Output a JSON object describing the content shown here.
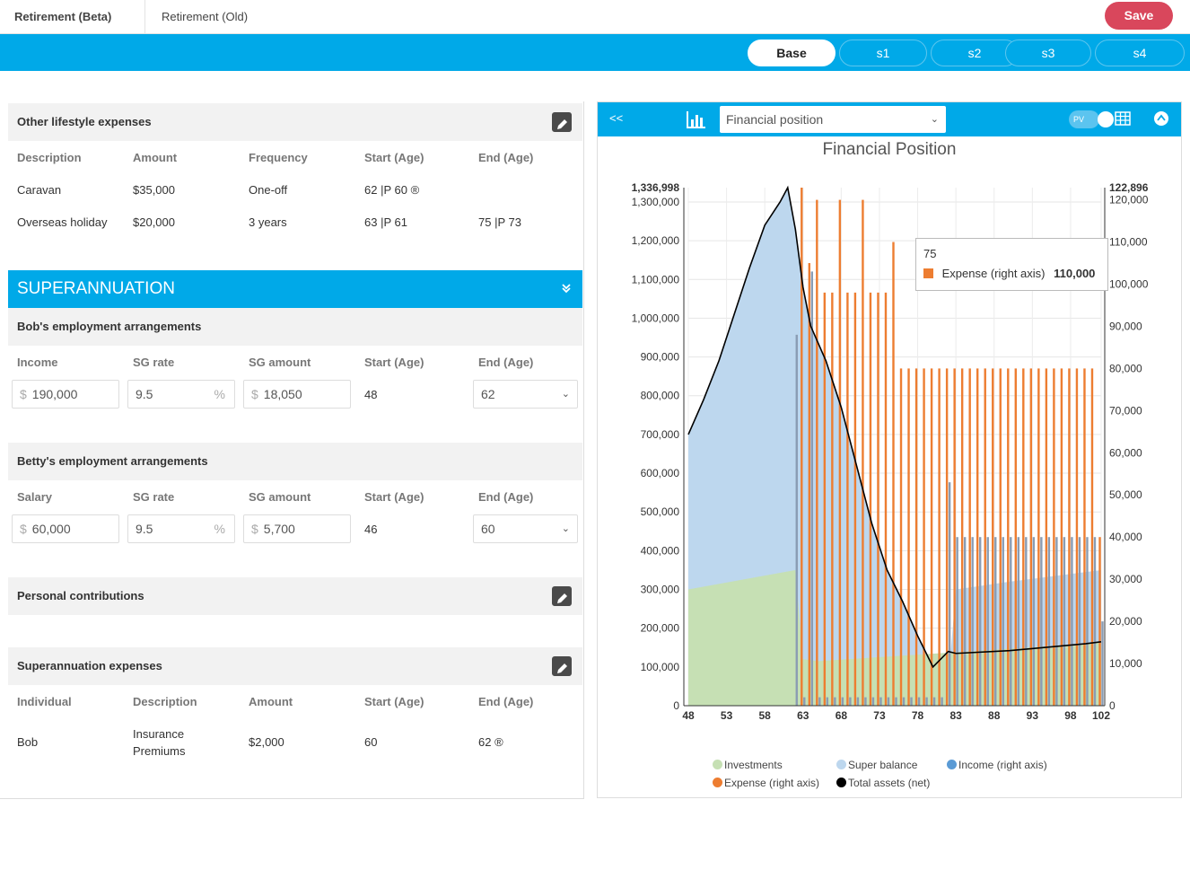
{
  "tabs": [
    {
      "label": "Retirement (Beta)"
    },
    {
      "label": "Retirement (Old)"
    }
  ],
  "save_label": "Save",
  "scenarios": [
    "Base",
    "s1",
    "s2",
    "s3",
    "s4"
  ],
  "lifestyle": {
    "title": "Other lifestyle expenses",
    "headers": [
      "Description",
      "Amount",
      "Frequency",
      "Start (Age)",
      "End (Age)"
    ],
    "rows": [
      [
        "Caravan",
        "$35,000",
        "One-off",
        "62 |P 60 ®",
        ""
      ],
      [
        "Overseas holiday",
        "$20,000",
        "3 years",
        "63 |P 61",
        "75 |P 73"
      ]
    ]
  },
  "super_title": "SUPERANNUATION",
  "bob": {
    "title": "Bob's employment arrangements",
    "headers": [
      "Income",
      "SG rate",
      "SG amount",
      "Start (Age)",
      "End (Age)"
    ],
    "currency": "$",
    "pct": "%",
    "income": "190,000",
    "sg_rate": "9.5",
    "sg_amount": "18,050",
    "start": "48",
    "end": "62"
  },
  "betty": {
    "title": "Betty's employment arrangements",
    "headers": [
      "Salary",
      "SG rate",
      "SG amount",
      "Start (Age)",
      "End (Age)"
    ],
    "currency": "$",
    "pct": "%",
    "income": "60,000",
    "sg_rate": "9.5",
    "sg_amount": "5,700",
    "start": "46",
    "end": "60"
  },
  "personal_title": "Personal contributions",
  "superexp": {
    "title": "Superannuation expenses",
    "headers": [
      "Individual",
      "Description",
      "Amount",
      "Start (Age)",
      "End (Age)"
    ],
    "row": {
      "individual": "Bob",
      "desc1": "Insurance",
      "desc2": "Premiums",
      "amount": "$2,000",
      "start": "60",
      "end": "62 ®"
    }
  },
  "chart_toolbar": {
    "collapse": "<<",
    "select": "Financial position",
    "pv": "PV"
  },
  "tooltip": {
    "age": "75",
    "series": "Expense (right axis)",
    "value": "110,000"
  },
  "colors": {
    "blue": "#00a9e8",
    "save": "#d9475c",
    "investments": "#c6e0b4",
    "super": "#bdd7ee",
    "income": "#5b9bd5",
    "expense": "#ed7d31",
    "total": "#000000"
  },
  "chart_data": {
    "type": "combo",
    "title": "Financial Position",
    "x_ticks": [
      "48",
      "53",
      "58",
      "63",
      "68",
      "73",
      "78",
      "83",
      "88",
      "93",
      "98",
      "102"
    ],
    "xlim": [
      48,
      102
    ],
    "left_axis": {
      "ylim": [
        0,
        1336998
      ],
      "top_label": "1,336,998",
      "ticks": [
        "0",
        "100,000",
        "200,000",
        "300,000",
        "400,000",
        "500,000",
        "600,000",
        "700,000",
        "800,000",
        "900,000",
        "1,000,000",
        "1,100,000",
        "1,200,000",
        "1,300,000"
      ]
    },
    "right_axis": {
      "ylim": [
        0,
        122896
      ],
      "top_label": "122,896",
      "ticks": [
        "0",
        "10,000",
        "20,000",
        "30,000",
        "40,000",
        "50,000",
        "60,000",
        "70,000",
        "80,000",
        "90,000",
        "100,000",
        "110,000",
        "120,000"
      ]
    },
    "investments": {
      "x": [
        48,
        62,
        63,
        65,
        100,
        102
      ],
      "y": [
        300000,
        350000,
        120000,
        115000,
        160000,
        165000
      ]
    },
    "super_balance": {
      "x": [
        48,
        50,
        52,
        54,
        56,
        58,
        60,
        61,
        62,
        63,
        64,
        66,
        68,
        70,
        72,
        74,
        76,
        78,
        80,
        82,
        83,
        90,
        100,
        102
      ],
      "y": [
        700000,
        790000,
        890000,
        1010000,
        1130000,
        1240000,
        1300000,
        1336998,
        1230000,
        1080000,
        980000,
        890000,
        770000,
        620000,
        470000,
        350000,
        270000,
        180000,
        100000,
        60000,
        300000,
        320000,
        345000,
        350000
      ]
    },
    "total_assets": {
      "x": [
        48,
        50,
        52,
        54,
        56,
        58,
        60,
        61,
        62,
        63,
        64,
        66,
        68,
        70,
        72,
        74,
        76,
        78,
        80,
        82,
        83,
        90,
        100,
        102
      ],
      "y": [
        700000,
        790000,
        890000,
        1010000,
        1130000,
        1240000,
        1300000,
        1336998,
        1230000,
        1080000,
        980000,
        890000,
        770000,
        620000,
        470000,
        350000,
        270000,
        180000,
        100000,
        140000,
        135000,
        142000,
        160000,
        165000
      ]
    },
    "income_right": {
      "x": [
        62,
        63,
        64,
        65,
        66,
        67,
        68,
        69,
        70,
        71,
        72,
        73,
        74,
        75,
        76,
        77,
        78,
        79,
        80,
        81,
        82,
        83,
        84,
        85,
        86,
        87,
        88,
        89,
        90,
        91,
        92,
        93,
        94,
        95,
        96,
        97,
        98,
        99,
        100,
        101,
        102
      ],
      "y": [
        88000,
        2000,
        103000,
        2000,
        2000,
        2000,
        2000,
        2000,
        2000,
        2000,
        2000,
        2000,
        2000,
        2000,
        2000,
        2000,
        2000,
        2000,
        2000,
        2000,
        53000,
        40000,
        40000,
        40000,
        40000,
        40000,
        40000,
        40000,
        40000,
        40000,
        40000,
        40000,
        40000,
        40000,
        40000,
        40000,
        40000,
        40000,
        40000,
        40000,
        20000
      ]
    },
    "expense_right": {
      "x": [
        62,
        63,
        64,
        65,
        66,
        67,
        68,
        69,
        70,
        71,
        72,
        73,
        74,
        75,
        76,
        77,
        78,
        79,
        80,
        81,
        82,
        83,
        84,
        85,
        86,
        87,
        88,
        89,
        90,
        91,
        92,
        93,
        94,
        95,
        96,
        97,
        98,
        99,
        100,
        101,
        102
      ],
      "y": [
        0,
        122896,
        105000,
        120000,
        98000,
        98000,
        120000,
        98000,
        98000,
        120000,
        98000,
        98000,
        98000,
        110000,
        80000,
        80000,
        80000,
        80000,
        80000,
        80000,
        80000,
        80000,
        80000,
        80000,
        80000,
        80000,
        80000,
        80000,
        80000,
        80000,
        80000,
        80000,
        80000,
        80000,
        80000,
        80000,
        80000,
        80000,
        80000,
        80000,
        40000
      ]
    },
    "legend": [
      "Investments",
      "Super balance",
      "Income (right axis)",
      "Expense (right axis)",
      "Total assets (net)"
    ]
  }
}
